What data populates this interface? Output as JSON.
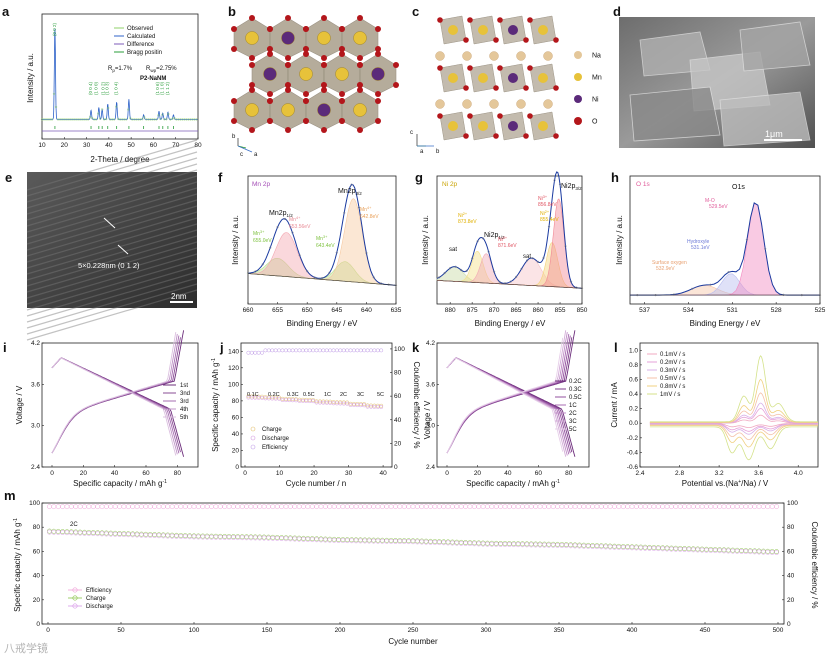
{
  "panels": {
    "a": {
      "label": "a",
      "xlabel": "2-Theta / degree",
      "ylabel": "Intensity / a.u.",
      "xticks": [
        "10",
        "20",
        "30",
        "40",
        "50",
        "60",
        "70",
        "80"
      ],
      "legend": [
        "Observed",
        "Calculated",
        "Difference",
        "Bragg positin"
      ],
      "rp": "R",
      "rp_sub": "p",
      "rp_val": "=1.7%",
      "rwp": "R",
      "rwp_sub": "wp",
      "rwp_val": "=2.75%",
      "sample": "P2-NaNM",
      "peak_labels": [
        "(0 0 2)",
        "(0 0 4)",
        "(1 0 0)",
        "(1 0 2)",
        "(1 0 3)",
        "(1 0 4)",
        "(1 0 6)",
        "(1 1 0)",
        "(1 1 2)"
      ]
    },
    "b": {
      "label": "b",
      "axes": [
        "b",
        "c",
        "a"
      ]
    },
    "c": {
      "label": "c",
      "axes": [
        "c",
        "a",
        "b"
      ],
      "legend": [
        {
          "name": "Na",
          "color": "#e4c79a"
        },
        {
          "name": "Mn",
          "color": "#e7c23a"
        },
        {
          "name": "Ni",
          "color": "#5b2a7a"
        },
        {
          "name": "O",
          "color": "#b3161b"
        }
      ]
    },
    "d": {
      "label": "d",
      "scale": "1μm"
    },
    "e": {
      "label": "e",
      "annotation": "5×0.228nm (0 1 2)",
      "scale": "2nm"
    },
    "f": {
      "label": "f",
      "title": "Mn 2p",
      "xlabel": "Binding Energy / eV",
      "ylabel": "Intensity / a.u.",
      "xticks": [
        "660",
        "655",
        "650",
        "645",
        "640",
        "635"
      ],
      "peaks": [
        {
          "main": "Mn2p",
          "sub": "1/2",
          "pos": "left"
        },
        {
          "main": "Mn2p",
          "sub": "3/2",
          "pos": "right"
        }
      ],
      "species": [
        {
          "ion": "Mn",
          "charge": "3+",
          "ev": "655.0eV",
          "color": "#7fc241"
        },
        {
          "ion": "Mn",
          "charge": "4+",
          "ev": "653.56eV",
          "color": "#e88a95"
        },
        {
          "ion": "Mn",
          "charge": "3+",
          "ev": "643.4eV",
          "color": "#7fc241"
        },
        {
          "ion": "Mn",
          "charge": "4+",
          "ev": "642.8eV",
          "color": "#e8a05a"
        }
      ]
    },
    "g": {
      "label": "g",
      "title": "Ni 2p",
      "xlabel": "Binding Energy / eV",
      "ylabel": "Intensity / a.u.",
      "xticks": [
        "880",
        "875",
        "870",
        "865",
        "860",
        "855",
        "850"
      ],
      "peaks": [
        {
          "main": "Ni2p",
          "sub": "1/2"
        },
        {
          "main": "Ni2p",
          "sub": "3/2"
        }
      ],
      "sat": [
        "sat",
        "sat"
      ],
      "species": [
        {
          "ion": "Ni",
          "charge": "2+",
          "ev": "873.8eV",
          "color": "#e0b000"
        },
        {
          "ion": "Ni",
          "charge": "3+",
          "ev": "871.6eV",
          "color": "#e05563"
        },
        {
          "ion": "Ni",
          "charge": "3+",
          "ev": "856.8eV",
          "color": "#e05563"
        },
        {
          "ion": "Ni",
          "charge": "2+",
          "ev": "855.4eV",
          "color": "#e0b000"
        }
      ]
    },
    "h": {
      "label": "h",
      "title": "O 1s",
      "xlabel": "Binding Energy / eV",
      "ylabel": "Intensity / a.u.",
      "xticks": [
        "537",
        "534",
        "531",
        "528",
        "525"
      ],
      "peak": "O1s",
      "species": [
        {
          "name": "M-O",
          "ev": "529.5eV",
          "color": "#e05c9a"
        },
        {
          "name": "Hydroxyle",
          "ev": "531.1eV",
          "color": "#6b78d6"
        },
        {
          "name": "Surface oxygen",
          "ev": "532.9eV",
          "color": "#e8a070"
        }
      ]
    },
    "i": {
      "label": "i",
      "xlabel": "Specific capacity / mAh g",
      "xlabel_sup": "-1",
      "ylabel": "Voltage / V",
      "xticks": [
        "0",
        "20",
        "40",
        "60",
        "80"
      ],
      "yticks": [
        "2.4",
        "3.0",
        "3.6",
        "4.2"
      ],
      "legend": [
        "1st",
        "3nd",
        "3rd",
        "4th",
        "5th"
      ]
    },
    "j": {
      "label": "j",
      "xlabel": "Cycle number / n",
      "ylabel": "Specific capacity / mAh g",
      "ylabel_sup": "-1",
      "ylabel_right": "Coulombic efficiency / %",
      "xticks": [
        "0",
        "10",
        "20",
        "30",
        "40"
      ],
      "yticks": [
        "0",
        "20",
        "40",
        "60",
        "80",
        "100",
        "120",
        "140"
      ],
      "yticks_right": [
        "0",
        "20",
        "40",
        "60",
        "80",
        "100"
      ],
      "rates": [
        "0.1C",
        "0.2C",
        "0.3C",
        "0.5C",
        "1C",
        "2C",
        "3C",
        "5C"
      ],
      "legend": [
        "Charge",
        "Discharge",
        "Efficiency"
      ]
    },
    "k": {
      "label": "k",
      "xlabel": "Specific capacity / mAh g",
      "xlabel_sup": "-1",
      "ylabel": "Voltage / V",
      "xticks": [
        "0",
        "20",
        "40",
        "60",
        "80"
      ],
      "yticks": [
        "2.4",
        "3.0",
        "3.6",
        "4.2"
      ],
      "legend": [
        "0.2C",
        "0.3C",
        "0.5C",
        "1C",
        "2C",
        "3C",
        "5C"
      ]
    },
    "l": {
      "label": "l",
      "xlabel": "Potential vs.(Na",
      "xlabel_sup": "+",
      "xlabel_end": "/Na) / V",
      "ylabel": "Current / mA",
      "xticks": [
        "2.4",
        "2.8",
        "3.2",
        "3.6",
        "4.0"
      ],
      "yticks": [
        "-0.6",
        "-0.4",
        "-0.2",
        "0.0",
        "0.2",
        "0.4",
        "0.6",
        "0.8",
        "1.0"
      ],
      "legend": [
        "0.1mV / s",
        "0.2mV / s",
        "0.3mV / s",
        "0.5mV / s",
        "0.8mV / s",
        "1mV / s"
      ]
    },
    "m": {
      "label": "m",
      "xlabel": "Cycle number",
      "ylabel": "Specific capacity / mAh g",
      "ylabel_sup": "-1",
      "ylabel_right": "Coulombic efficiency / %",
      "xticks": [
        "0",
        "50",
        "100",
        "150",
        "200",
        "250",
        "300",
        "350",
        "400",
        "450",
        "500"
      ],
      "yticks": [
        "0",
        "20",
        "40",
        "60",
        "80",
        "100"
      ],
      "yticks_right": [
        "0",
        "20",
        "40",
        "60",
        "80",
        "100"
      ],
      "rate": "2C",
      "legend": [
        "Efficiency",
        "Charge",
        "Discharge"
      ]
    }
  },
  "watermark": "八戒学镜",
  "chart_data": [
    {
      "type": "line",
      "panel": "a",
      "title": "",
      "xlabel": "2-Theta / degree",
      "ylabel": "Intensity / a.u.",
      "xlim": [
        10,
        80
      ],
      "x": [
        10,
        15.8,
        20,
        32,
        35,
        37,
        39,
        43,
        49,
        55,
        62,
        64,
        66,
        80
      ],
      "values": [
        0.05,
        1.0,
        0.05,
        0.12,
        0.14,
        0.12,
        0.18,
        0.2,
        0.22,
        0.05,
        0.1,
        0.08,
        0.08,
        0.05
      ]
    },
    {
      "type": "bar",
      "panel": "j",
      "title": "",
      "xlabel": "Cycle number / n",
      "ylabel": "Specific capacity / mAh g-1",
      "categories": [
        "0.1C",
        "0.2C",
        "0.3C",
        "0.5C",
        "1C",
        "2C",
        "3C",
        "5C"
      ],
      "series": [
        {
          "name": "Discharge",
          "values": [
            84,
            83,
            81,
            80,
            78,
            77,
            75,
            73
          ]
        },
        {
          "name": "Efficiency",
          "values": [
            97,
            99,
            99,
            99,
            99,
            99,
            99,
            99
          ]
        }
      ],
      "ylim": [
        0,
        150
      ]
    },
    {
      "type": "line",
      "panel": "m",
      "title": "",
      "xlabel": "Cycle number",
      "ylabel": "Specific capacity / mAh g-1",
      "xlim": [
        0,
        500
      ],
      "ylim": [
        0,
        100
      ],
      "x": [
        0,
        50,
        100,
        150,
        200,
        250,
        300,
        350,
        400,
        450,
        500
      ],
      "series": [
        {
          "name": "Discharge",
          "values": [
            76,
            74,
            72,
            71,
            69,
            68,
            66,
            65,
            63,
            61,
            59
          ]
        },
        {
          "name": "Efficiency",
          "values": [
            97,
            97,
            97,
            97,
            97,
            97,
            97,
            97,
            97,
            97,
            97
          ]
        }
      ]
    }
  ]
}
